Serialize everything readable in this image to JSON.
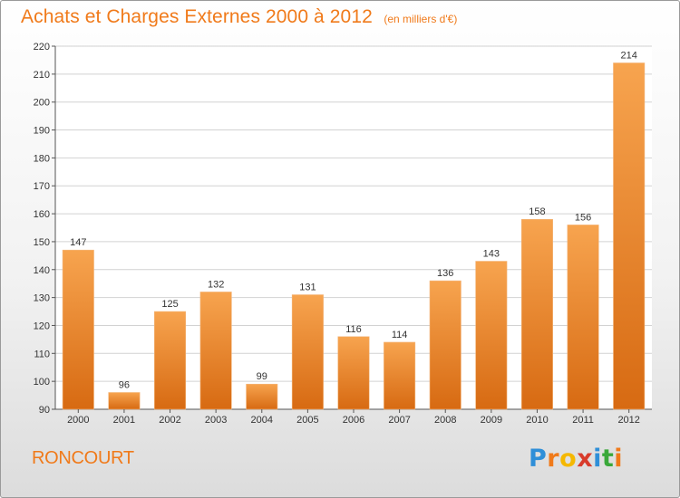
{
  "header": {
    "title": "Achats et Charges Externes 2000 à 2012",
    "subtitle": "(en milliers d'€)"
  },
  "footer": {
    "commune": "RONCOURT",
    "brand": "Proxiti",
    "brand_letters": [
      {
        "ch": "P",
        "color": "#2f8fd8"
      },
      {
        "ch": "r",
        "color": "#f07a1a"
      },
      {
        "ch": "o",
        "color": "#f5b800"
      },
      {
        "ch": "x",
        "color": "#d83b2b"
      },
      {
        "ch": "i",
        "color": "#2f8fd8"
      },
      {
        "ch": "t",
        "color": "#3aa83a"
      },
      {
        "ch": "i",
        "color": "#f07a1a"
      }
    ]
  },
  "chart_data": {
    "type": "bar",
    "title": "Achats et Charges Externes 2000 à 2012",
    "subtitle": "(en milliers d'€)",
    "xlabel": "",
    "ylabel": "",
    "categories": [
      "2000",
      "2001",
      "2002",
      "2003",
      "2004",
      "2005",
      "2006",
      "2007",
      "2008",
      "2009",
      "2010",
      "2011",
      "2012"
    ],
    "values": [
      147,
      96,
      125,
      132,
      99,
      131,
      116,
      114,
      136,
      143,
      158,
      156,
      214
    ],
    "ylim": [
      90,
      220
    ],
    "yticks": [
      90,
      100,
      110,
      120,
      130,
      140,
      150,
      160,
      170,
      180,
      190,
      200,
      210,
      220
    ],
    "grid": true,
    "bar_color_light": "#f7a44f",
    "bar_color_dark": "#d76a12",
    "text_color": "#333333"
  }
}
